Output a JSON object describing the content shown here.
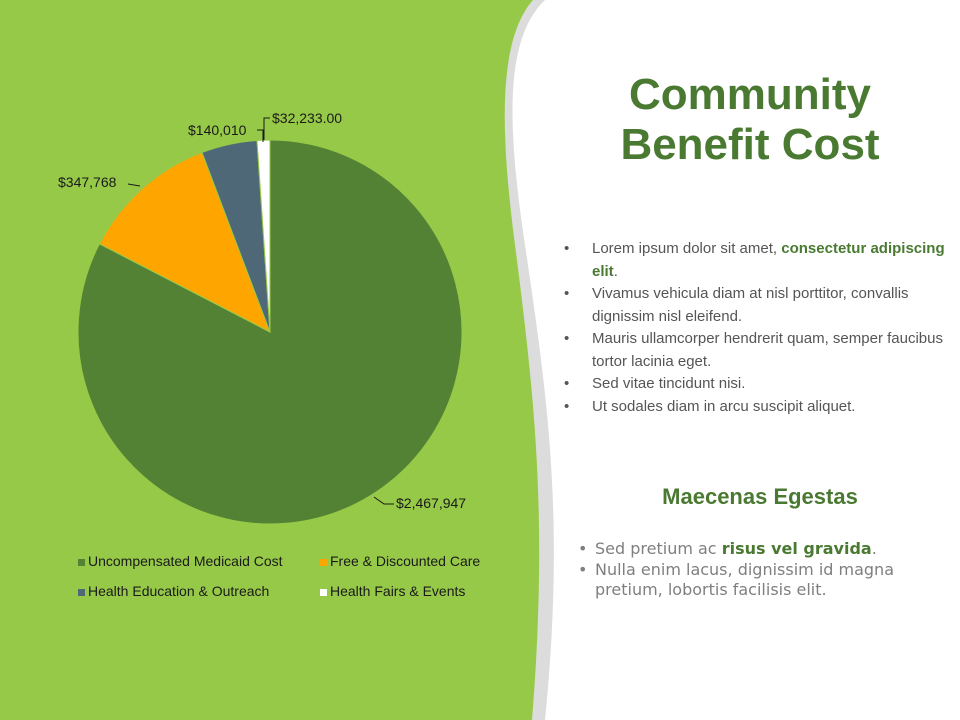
{
  "slide": {
    "title_line1": "Community",
    "title_line2": "Benefit Cost",
    "bullets": [
      {
        "text": "Lorem ipsum dolor sit amet, ",
        "bold": "consectetur adipiscing elit",
        "tail": "."
      },
      {
        "text": "Vivamus vehicula diam at nisl porttitor, convallis dignissim nisl eleifend.",
        "bold": "",
        "tail": ""
      },
      {
        "text": "Mauris ullamcorper hendrerit quam, semper faucibus tortor lacinia eget.",
        "bold": "",
        "tail": ""
      },
      {
        "text": "Sed vitae tincidunt nisi.",
        "bold": "",
        "tail": ""
      },
      {
        "text": "Ut sodales diam in arcu suscipit aliquet.",
        "bold": "",
        "tail": ""
      }
    ],
    "subtitle": "Maecenas Egestas",
    "bullets2": [
      {
        "text": "Sed pretium ac ",
        "bold": "risus vel gravida",
        "tail": "."
      },
      {
        "text": "Nulla enim lacus, dignissim id magna pretium, lobortis facilisis elit.",
        "bold": "",
        "tail": ""
      }
    ]
  },
  "colors": {
    "panel_green": "#97c948",
    "title_green": "#4a7a32",
    "divider_gray": "#dcdcdc"
  },
  "chart_data": {
    "type": "pie",
    "title": "",
    "start_angle_deg": 0,
    "direction": "clockwise",
    "series": [
      {
        "name": "Uncompensated Medicaid Cost",
        "value": 2467947,
        "label": "$2,467,947",
        "color": "#548235"
      },
      {
        "name": "Free & Discounted Care",
        "value": 347768,
        "label": "$347,768",
        "color": "#ffa500"
      },
      {
        "name": "Health Education & Outreach",
        "value": 140010,
        "label": "$140,010",
        "color": "#4e6877"
      },
      {
        "name": "Health Fairs & Events",
        "value": 32233,
        "label": "$32,233.00",
        "color": "#ffffff"
      }
    ],
    "legend": {
      "position": "bottom"
    }
  }
}
